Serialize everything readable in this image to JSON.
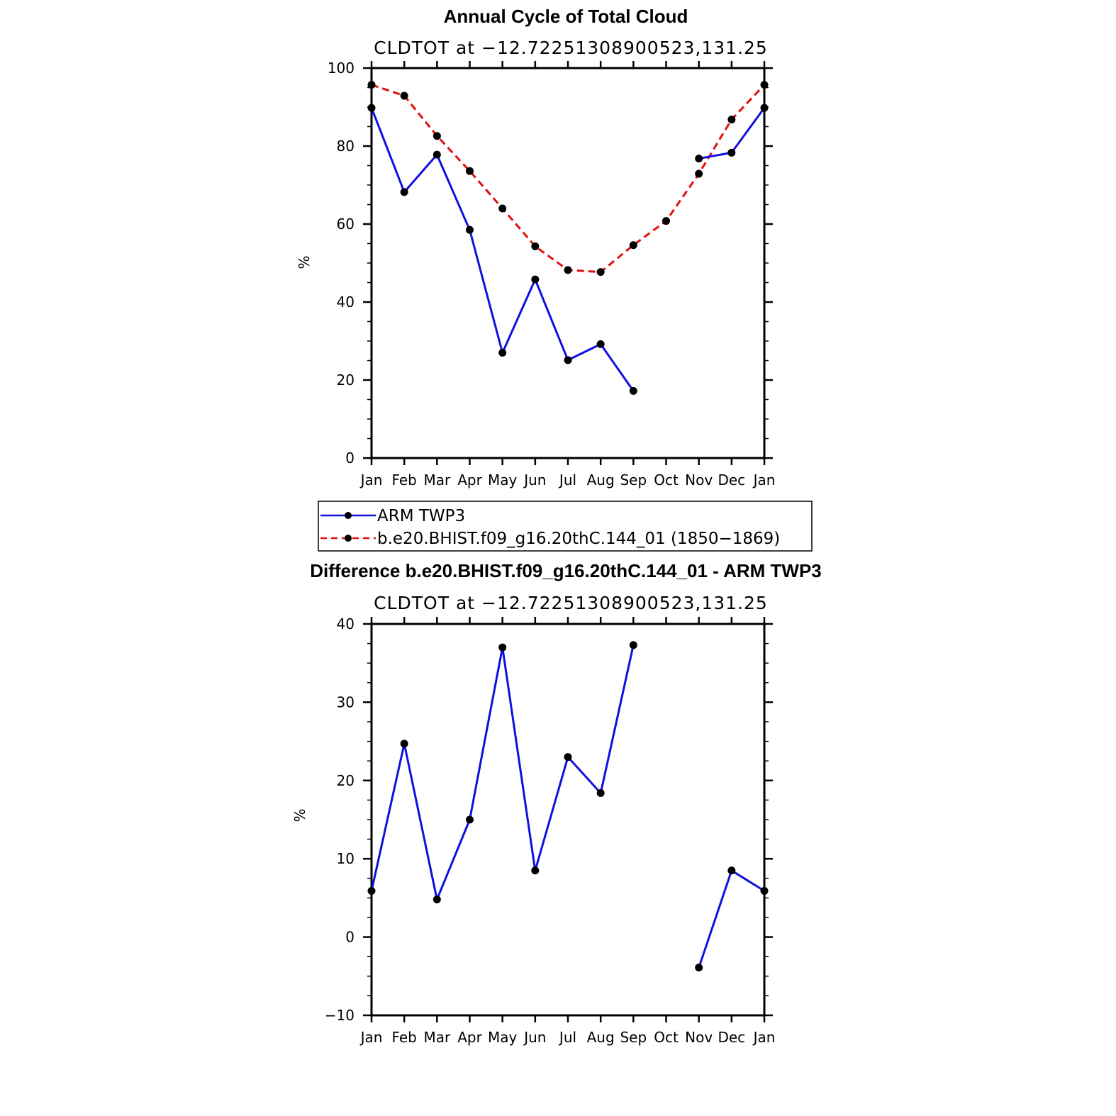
{
  "chart_data": [
    {
      "type": "line",
      "title": "Annual Cycle of Total Cloud",
      "subtitle": "CLDTOT at −12.72251308900523,131.25",
      "xlabel": "",
      "ylabel": "%",
      "categories": [
        "Jan",
        "Feb",
        "Mar",
        "Apr",
        "May",
        "Jun",
        "Jul",
        "Aug",
        "Sep",
        "Oct",
        "Nov",
        "Dec",
        "Jan"
      ],
      "ylim": [
        0,
        100
      ],
      "yticks": [
        0,
        20,
        40,
        60,
        80,
        100
      ],
      "series": [
        {
          "name": "ARM TWP3",
          "color": "#1010e0",
          "dash": "solid",
          "values": [
            89.8,
            68.2,
            77.8,
            58.5,
            27.0,
            45.8,
            25.1,
            29.2,
            17.2,
            null,
            76.8,
            78.3,
            89.8
          ]
        },
        {
          "name": "b.e20.BHIST.f09_g16.20thC.144_01 (1850−1869)",
          "color": "#e01010",
          "dash": "dashed",
          "values": [
            95.7,
            92.9,
            82.6,
            73.6,
            64.0,
            54.3,
            48.2,
            47.7,
            54.6,
            60.8,
            72.9,
            86.8,
            95.7
          ]
        }
      ]
    },
    {
      "type": "line",
      "title": "Difference b.e20.BHIST.f09_g16.20thC.144_01 - ARM TWP3",
      "subtitle": "CLDTOT at −12.72251308900523,131.25",
      "xlabel": "",
      "ylabel": "%",
      "categories": [
        "Jan",
        "Feb",
        "Mar",
        "Apr",
        "May",
        "Jun",
        "Jul",
        "Aug",
        "Sep",
        "Oct",
        "Nov",
        "Dec",
        "Jan"
      ],
      "ylim": [
        -10,
        40
      ],
      "yticks": [
        -10,
        0,
        10,
        20,
        30,
        40
      ],
      "series": [
        {
          "name": "Difference",
          "color": "#1010e0",
          "dash": "solid",
          "values": [
            5.9,
            24.7,
            4.8,
            15.0,
            37.0,
            8.5,
            23.0,
            18.4,
            37.3,
            null,
            -3.9,
            8.5,
            5.9
          ]
        }
      ]
    }
  ],
  "legend": {
    "items": [
      {
        "label": "ARM TWP3",
        "color": "#1010e0",
        "dash": "solid"
      },
      {
        "label": "b.e20.BHIST.f09_g16.20thC.144_01 (1850−1869)",
        "color": "#e01010",
        "dash": "dashed"
      }
    ]
  }
}
